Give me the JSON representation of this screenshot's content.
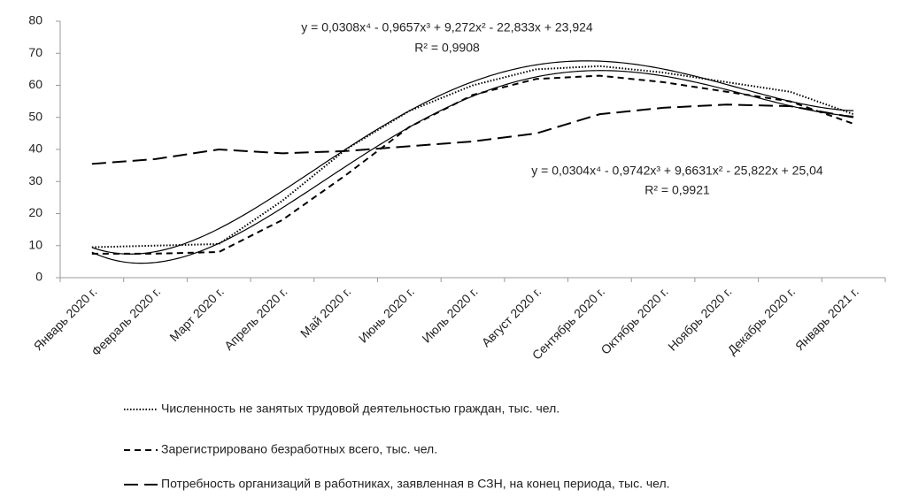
{
  "chart_data": {
    "type": "line",
    "categories": [
      "Январь 2020 г.",
      "Февраль 2020 г.",
      "Март 2020 г.",
      "Апрель 2020 г.",
      "Май 2020 г.",
      "Июнь 2020 г.",
      "Июль 2020 г.",
      "Август 2020 г.",
      "Сентябрь 2020 г.",
      "Октябрь 2020 г.",
      "Ноябрь 2020 г.",
      "Декабрь 2020 г.",
      "Январь 2021 г."
    ],
    "series": [
      {
        "name": "Численность не занятых трудовой деятельностью граждан, тыс. чел.",
        "color": "#000000",
        "style": "dotted",
        "values": [
          9.5,
          10,
          10.5,
          24,
          40,
          52,
          60,
          65,
          66,
          64,
          61,
          58,
          51
        ]
      },
      {
        "name": "Зарегистрировано безработных всего, тыс. чел.",
        "color": "#000000",
        "style": "dashed",
        "values": [
          7.5,
          7.5,
          8,
          18,
          32,
          47,
          57,
          62,
          63,
          61,
          58,
          55,
          48
        ]
      },
      {
        "name": "Потребность организаций в работниках, заявленная в  СЗН, на конец периода, тыс. чел.",
        "color": "#000000",
        "style": "longdash",
        "values": [
          35.5,
          37,
          40,
          38.8,
          39.5,
          41,
          42.5,
          45,
          51,
          53,
          54,
          53.5,
          50
        ]
      }
    ],
    "trendlines": [
      {
        "equation": "y = 0,0308x⁴ - 0,9657x³ + 9,272x² - 22,833x + 23,924",
        "r2": "R² = 0,9908",
        "coefficients": [
          0.0308,
          -0.9657,
          9.272,
          -22.833,
          23.924
        ]
      },
      {
        "equation": "y = 0,0304x⁴ - 0,9742x³ + 9,6631x² - 25,822x + 25,04",
        "r2": "R² = 0,9921",
        "coefficients": [
          0.0304,
          -0.9742,
          9.6631,
          -25.822,
          25.04
        ]
      }
    ],
    "ylim": [
      0,
      80
    ],
    "yticks": [
      0,
      10,
      20,
      30,
      40,
      50,
      60,
      70,
      80
    ],
    "grid": false
  }
}
